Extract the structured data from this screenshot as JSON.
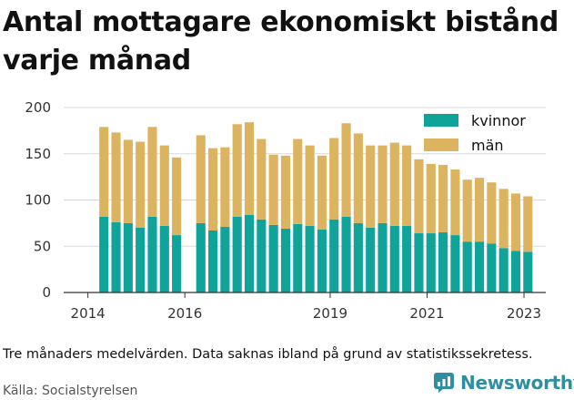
{
  "title": "Antal mottagare ekonomiskt bistånd varje månad",
  "note": "Tre månaders medelvärden. Data saknas ibland på grund av statistikssekretess.",
  "source": "Källa: Socialstyrelsen",
  "brand": {
    "name": "Newsworthy",
    "icon": "newsworthy-logo-icon"
  },
  "colors": {
    "kvinnor": "#0fa39a",
    "man": "#dcb35f",
    "grid": "#d9d9d9",
    "axis": "#333333"
  },
  "chart_data": {
    "type": "bar",
    "stacked": true,
    "ylim": [
      0,
      200
    ],
    "yticks": [
      0,
      50,
      100,
      150,
      200
    ],
    "xticks": [
      2014,
      2016,
      2019,
      2021,
      2023
    ],
    "grid": true,
    "legend_position": "top-right",
    "x": [
      2014.33,
      2014.58,
      2014.83,
      2015.08,
      2015.33,
      2015.58,
      2015.83,
      2016.33,
      2016.58,
      2016.83,
      2017.08,
      2017.33,
      2017.58,
      2017.83,
      2018.08,
      2018.33,
      2018.58,
      2018.83,
      2019.08,
      2019.33,
      2019.58,
      2019.83,
      2020.08,
      2020.33,
      2020.58,
      2020.83,
      2021.08,
      2021.33,
      2021.58,
      2021.83,
      2022.08,
      2022.33,
      2022.58,
      2022.83,
      2023.08
    ],
    "series": [
      {
        "name": "kvinnor",
        "values": [
          82,
          76,
          75,
          70,
          82,
          72,
          62,
          75,
          67,
          71,
          82,
          84,
          79,
          73,
          69,
          74,
          72,
          68,
          79,
          82,
          75,
          70,
          75,
          72,
          72,
          64,
          64,
          65,
          62,
          55,
          55,
          53,
          48,
          45,
          44
        ]
      },
      {
        "name": "män",
        "values": [
          97,
          97,
          90,
          93,
          97,
          87,
          84,
          95,
          89,
          86,
          100,
          100,
          87,
          76,
          79,
          92,
          87,
          80,
          88,
          101,
          97,
          89,
          84,
          90,
          87,
          80,
          75,
          73,
          71,
          67,
          69,
          66,
          64,
          62,
          60
        ]
      }
    ]
  }
}
